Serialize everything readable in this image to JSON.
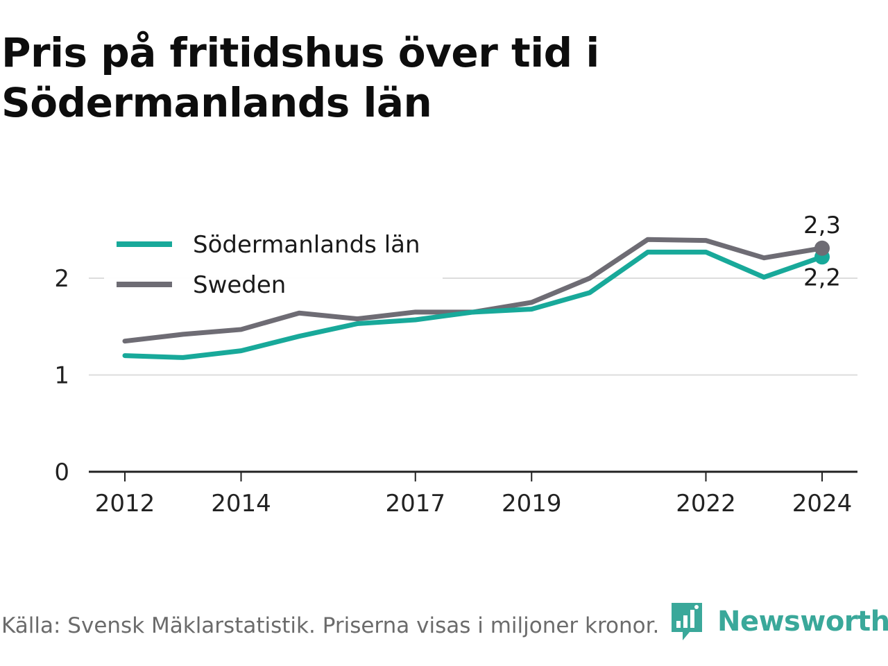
{
  "title_line1": "Pris på fritidshus över tid i",
  "title_line2": "Södermanlands län",
  "source": "Källa: Svensk Mäklarstatistik. Priserna visas i miljoner kronor.",
  "brand": "Newsworthy",
  "colors": {
    "sodermanland": "#18a99a",
    "sweden": "#6e6c74",
    "grid": "#dddddd",
    "axis": "#222222",
    "brand": "#3aa89a"
  },
  "chart_data": {
    "type": "line",
    "title": "Pris på fritidshus över tid i Södermanlands län",
    "x": [
      2012,
      2013,
      2014,
      2015,
      2016,
      2017,
      2018,
      2019,
      2020,
      2021,
      2022,
      2023,
      2024
    ],
    "x_ticks": [
      "2012",
      "2014",
      "2017",
      "2019",
      "2022",
      "2024"
    ],
    "y_ticks": [
      "0",
      "1",
      "2"
    ],
    "ylim": [
      0,
      2.5
    ],
    "grid": true,
    "legend_position": "top-left",
    "series": [
      {
        "name": "Södermanlands län",
        "color": "#18a99a",
        "values": [
          1.2,
          1.18,
          1.25,
          1.4,
          1.53,
          1.57,
          1.65,
          1.68,
          1.85,
          2.27,
          2.27,
          2.01,
          2.22
        ],
        "end_label": "2,2"
      },
      {
        "name": "Sweden",
        "color": "#6e6c74",
        "values": [
          1.35,
          1.42,
          1.47,
          1.64,
          1.58,
          1.65,
          1.65,
          1.75,
          2.0,
          2.4,
          2.39,
          2.21,
          2.31
        ],
        "end_label": "2,3"
      }
    ]
  }
}
